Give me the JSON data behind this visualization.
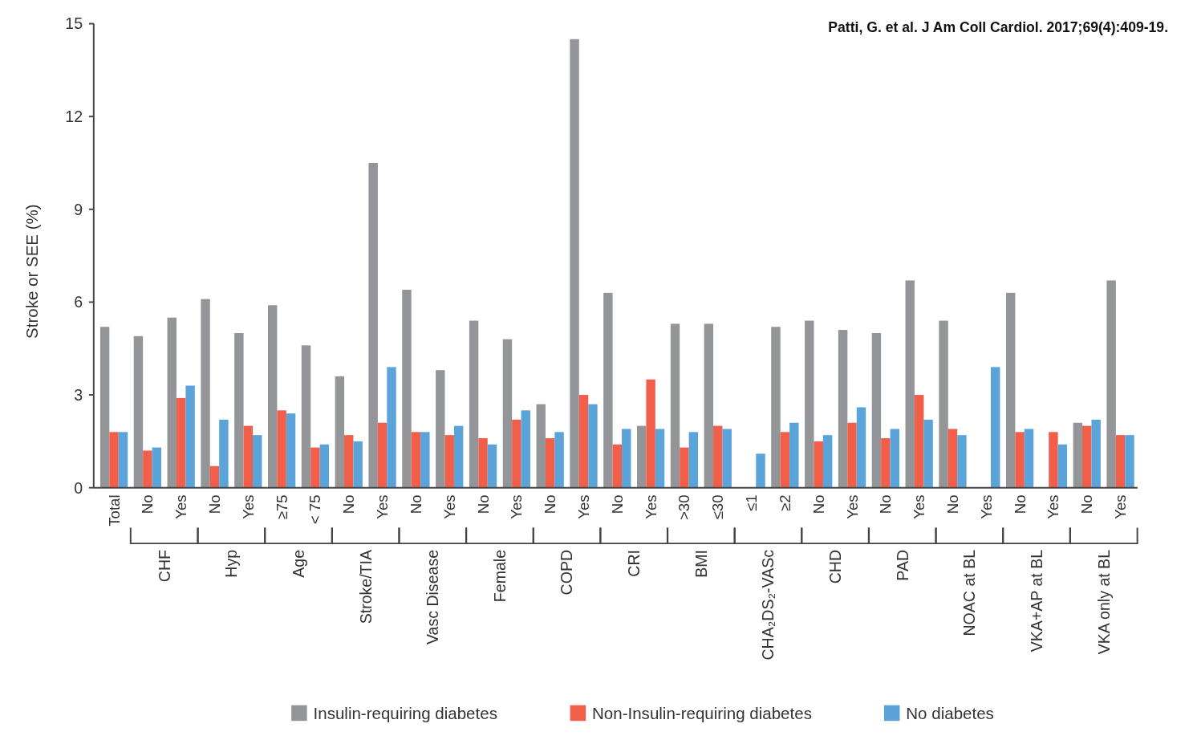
{
  "chart_data": {
    "type": "bar",
    "ylabel": "Stroke or SEE (%)",
    "categories": [
      "Total",
      "No",
      "Yes",
      "No",
      "Yes",
      "≥75",
      "< 75",
      "No",
      "Yes",
      "No",
      "Yes",
      "No",
      "Yes",
      "No",
      "Yes",
      "No",
      "Yes",
      ">30",
      "≤30",
      "≤1",
      "≥2",
      "No",
      "Yes",
      "No",
      "Yes",
      "No",
      "Yes",
      "No",
      "Yes",
      "No",
      "Yes"
    ],
    "series": [
      {
        "name": "Insulin-requiring diabetes",
        "color": "#939598",
        "values": [
          5.2,
          4.9,
          5.5,
          6.1,
          5.0,
          5.9,
          4.6,
          3.6,
          10.5,
          6.4,
          3.8,
          5.4,
          4.8,
          2.7,
          14.5,
          6.3,
          2.0,
          5.3,
          5.3,
          null,
          5.2,
          5.4,
          5.1,
          5.0,
          6.7,
          5.4,
          null,
          6.3,
          null,
          2.1,
          6.7
        ]
      },
      {
        "name": "Non-Insulin-requiring diabetes",
        "color": "#f15f4a",
        "values": [
          1.8,
          1.2,
          2.9,
          0.7,
          2.0,
          2.5,
          1.3,
          1.7,
          2.1,
          1.8,
          1.7,
          1.6,
          2.2,
          1.6,
          3.0,
          1.4,
          3.5,
          1.3,
          2.0,
          null,
          1.8,
          1.5,
          2.1,
          1.6,
          3.0,
          1.9,
          null,
          1.8,
          1.8,
          2.0,
          1.7
        ]
      },
      {
        "name": "No diabetes",
        "color": "#5ba4da",
        "values": [
          1.8,
          1.3,
          3.3,
          2.2,
          1.7,
          2.4,
          1.4,
          1.5,
          3.9,
          1.8,
          2.0,
          1.4,
          2.5,
          1.8,
          2.7,
          1.9,
          1.9,
          1.8,
          1.9,
          1.1,
          2.1,
          1.7,
          2.6,
          1.9,
          2.2,
          1.7,
          3.9,
          1.9,
          1.4,
          2.2,
          1.7
        ]
      }
    ],
    "ylim": [
      0,
      15
    ],
    "yticks": [
      0,
      3,
      6,
      9,
      12,
      15
    ],
    "legend": "bottom",
    "annotations": [
      "Patti, G. et al. J Am Coll Cardiol. 2017;69(4):409-19.",
      "CHF",
      "Hyp",
      "Age",
      "Stroke/TIA",
      "Vasc Disease",
      "Female",
      "COPD",
      "CRI",
      "BMI",
      "CHA₂DS₂-VASc",
      "CHD",
      "PAD",
      "NOAC at BL",
      "VKA+AP at BL",
      "VKA only at BL"
    ]
  }
}
